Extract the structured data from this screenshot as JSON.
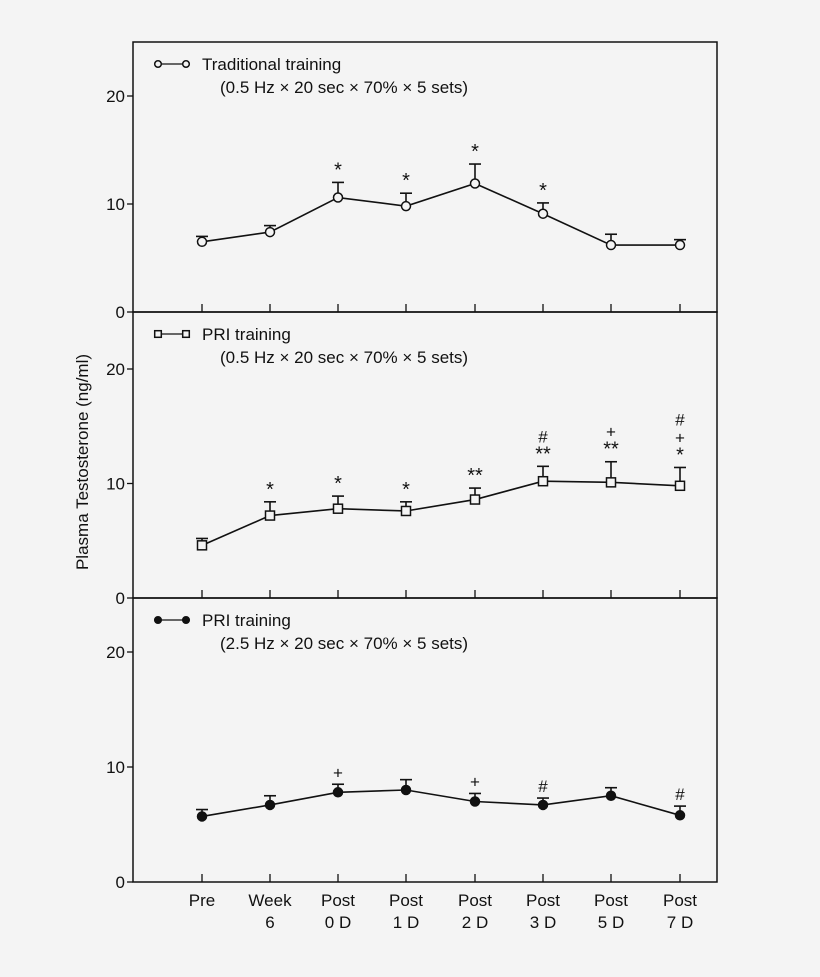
{
  "chart_data": {
    "type": "line",
    "ylabel": "Plasma Testosterone (ng/ml)",
    "categories": [
      [
        "Pre"
      ],
      [
        "Week",
        "6"
      ],
      [
        "Post",
        "0 D"
      ],
      [
        "Post",
        "1 D"
      ],
      [
        "Post",
        "2 D"
      ],
      [
        "Post",
        "3 D"
      ],
      [
        "Post",
        "5 D"
      ],
      [
        "Post",
        "7 D"
      ]
    ],
    "yticks": [
      0,
      10,
      20
    ],
    "ylim": [
      0,
      24
    ],
    "grid": false,
    "legend_position": "top-left",
    "panels": [
      {
        "name": "Traditional training",
        "condition": "(0.5 Hz × 20 sec × 70% × 5 sets)",
        "marker": "open-circle",
        "values": [
          6.5,
          7.4,
          10.6,
          9.8,
          11.9,
          9.1,
          6.2,
          6.2
        ],
        "error_upper": [
          7.0,
          8.0,
          12.0,
          11.0,
          13.7,
          10.1,
          7.2,
          6.7
        ],
        "annotations": [
          [],
          [],
          [
            "*"
          ],
          [
            "*"
          ],
          [
            "*"
          ],
          [
            "*"
          ],
          [],
          []
        ]
      },
      {
        "name": "PRI training",
        "condition": "(0.5 Hz × 20 sec × 70% × 5 sets)",
        "marker": "open-square",
        "values": [
          4.6,
          7.2,
          7.8,
          7.6,
          8.6,
          10.2,
          10.1,
          9.8
        ],
        "error_upper": [
          5.2,
          8.4,
          8.9,
          8.4,
          9.6,
          11.5,
          11.9,
          11.4
        ],
        "annotations": [
          [],
          [
            "*"
          ],
          [
            "*"
          ],
          [
            "*"
          ],
          [
            "**"
          ],
          [
            "#",
            "**"
          ],
          [
            "+",
            "**"
          ],
          [
            "#",
            "+",
            "*"
          ]
        ]
      },
      {
        "name": "PRI training",
        "condition": "(2.5 Hz × 20 sec × 70% × 5 sets)",
        "marker": "filled-circle",
        "values": [
          5.7,
          6.7,
          7.8,
          8.0,
          7.0,
          6.7,
          7.5,
          5.8
        ],
        "error_upper": [
          6.3,
          7.5,
          8.5,
          8.9,
          7.7,
          7.3,
          8.2,
          6.6
        ],
        "annotations": [
          [],
          [],
          [
            "+"
          ],
          [],
          [
            "+"
          ],
          [
            "#"
          ],
          [],
          [
            "#"
          ]
        ]
      }
    ]
  }
}
